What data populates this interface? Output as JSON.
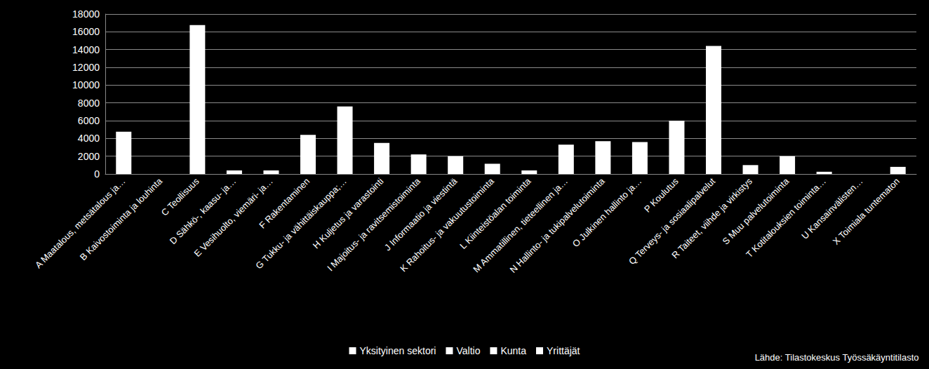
{
  "chart_data": {
    "type": "bar",
    "categories": [
      "A Maatalous, metsätalous ja…",
      "B Kaivostoiminta ja louhinta",
      "C Teollisuus",
      "D Sähkö-, kaasu- ja…",
      "E Vesihuolto, viemäri- ja…",
      "F Rakentaminen",
      "G Tukku- ja vähittäiskauppa;…",
      "H Kuljetus ja varastointi",
      "I Majoitus- ja ravitsemistoiminta",
      "J Informaatio ja viestintä",
      "K Rahoitus- ja vakuutustoiminta",
      "L Kiinteistöalan toiminta",
      "M Ammatillinen, tieteellinen ja…",
      "N Hallinto- ja tukipalvelutoiminta",
      "O Julkinen hallinto ja…",
      "P Koulutus",
      "Q Terveys- ja sosiaalipalvelut",
      "R Taiteet, viihde ja virkistys",
      "S Muu palvelutoiminta",
      "T Kotitalouksien toiminta…",
      "U Kansainvälisten…",
      "X Toimiala tuntematon"
    ],
    "series": [
      {
        "name": "Yksityinen sektori",
        "color": "#ffffff",
        "values": [
          4750,
          0,
          16750,
          400,
          400,
          4400,
          7600,
          3500,
          2200,
          2000,
          1150,
          400,
          3300,
          3700,
          3600,
          6000,
          14400,
          1000,
          2000,
          250,
          0,
          800
        ]
      },
      {
        "name": "Valtio",
        "color": "#ffffff",
        "values": [
          null,
          null,
          null,
          null,
          null,
          null,
          null,
          null,
          null,
          null,
          null,
          null,
          null,
          null,
          null,
          null,
          null,
          null,
          null,
          null,
          null,
          null
        ]
      },
      {
        "name": "Kunta",
        "color": "#ffffff",
        "values": [
          null,
          null,
          null,
          null,
          null,
          null,
          null,
          null,
          null,
          null,
          null,
          null,
          null,
          null,
          null,
          null,
          null,
          null,
          null,
          null,
          null,
          null
        ]
      },
      {
        "name": "Yrittäjät",
        "color": "#ffffff",
        "values": [
          null,
          null,
          null,
          null,
          null,
          null,
          null,
          null,
          null,
          null,
          null,
          null,
          null,
          null,
          null,
          null,
          null,
          null,
          null,
          null,
          null,
          null
        ]
      }
    ],
    "ylim": [
      0,
      18000
    ],
    "yticks": [
      0,
      2000,
      4000,
      6000,
      8000,
      10000,
      12000,
      14000,
      16000,
      18000
    ],
    "grid": true,
    "legend": "bottom",
    "annotation": "Lähde: Tilastokeskus Työssäkäyntitilasto"
  }
}
